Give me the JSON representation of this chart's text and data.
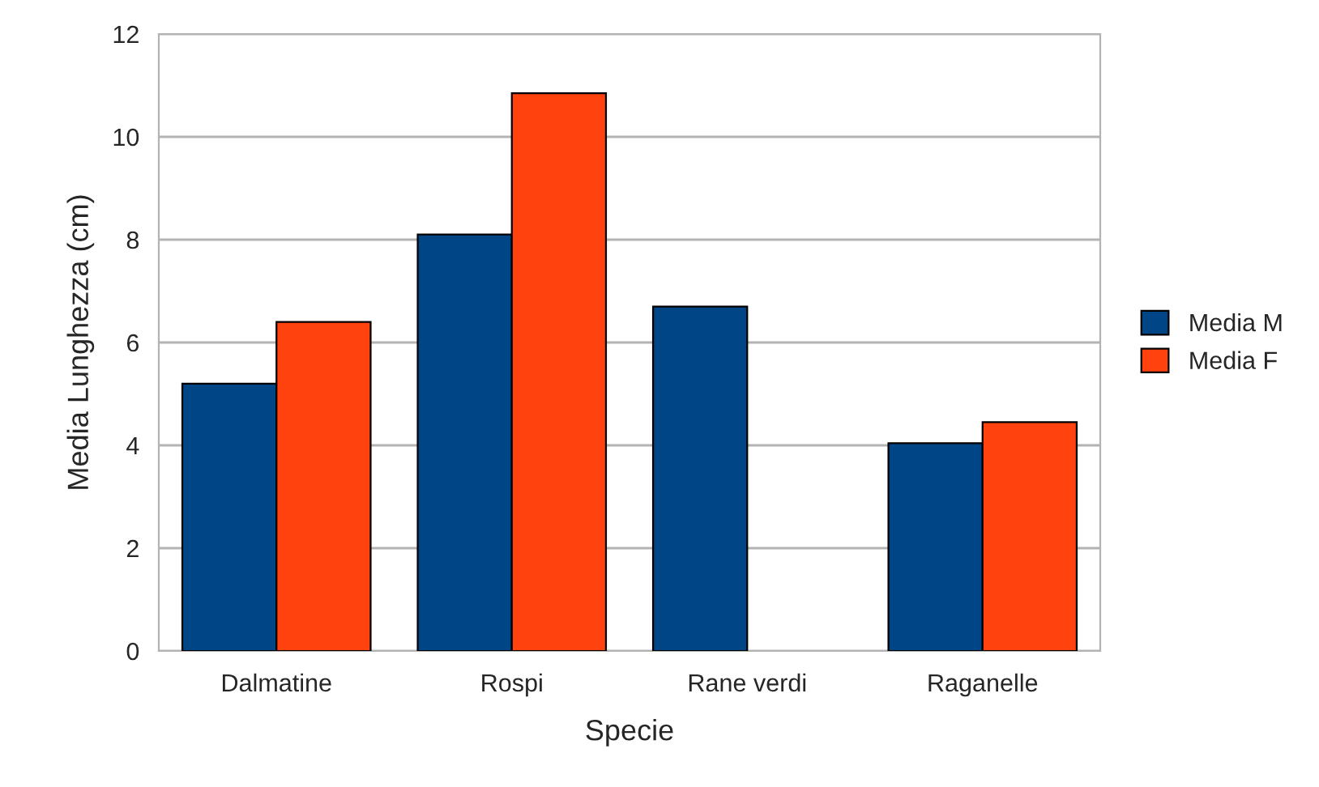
{
  "chart_data": {
    "type": "bar",
    "xlabel": "Specie",
    "ylabel": "Media Lunghezza (cm)",
    "categories": [
      "Dalmatine",
      "Rospi",
      "Rane verdi",
      "Raganelle"
    ],
    "series": [
      {
        "name": "Media M",
        "color": "#004586",
        "values": [
          5.2,
          8.1,
          6.7,
          4.04
        ]
      },
      {
        "name": "Media F",
        "color": "#ff420e",
        "values": [
          6.4,
          10.85,
          null,
          4.45
        ]
      }
    ],
    "ylim": [
      0,
      12
    ],
    "yticks": [
      0,
      2,
      4,
      6,
      8,
      10,
      12
    ],
    "grid": "y",
    "legend": "right"
  }
}
